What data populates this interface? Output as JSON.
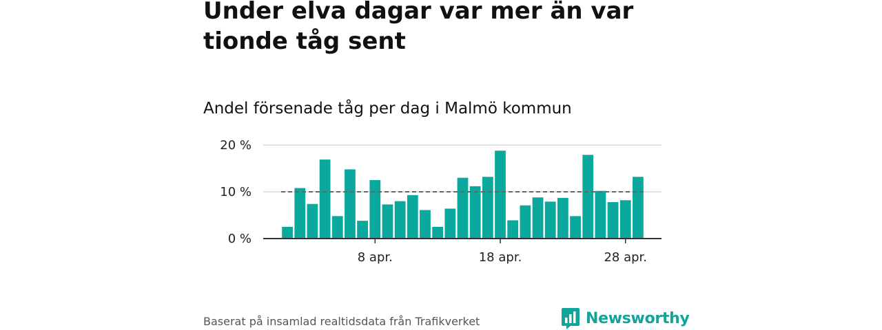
{
  "header": {
    "title": "Under elva dagar var mer än var tionde tåg sent",
    "subtitle": "Andel försenade tåg per dag i Malmö kommun"
  },
  "footer": {
    "source": "Baserat på insamlad realtidsdata från Trafikverket",
    "brand": "Newsworthy"
  },
  "colors": {
    "bar": "#0ba89e",
    "reference_line": "#666666",
    "grid": "#d9d9d9",
    "brand": "#12a39a"
  },
  "chart_data": {
    "type": "bar",
    "title": "Andel försenade tåg per dag i Malmö kommun",
    "xlabel": "",
    "ylabel": "",
    "y_unit": "%",
    "ylim": [
      0,
      20
    ],
    "y_ticks": [
      {
        "value": 0,
        "label": "0 %"
      },
      {
        "value": 10,
        "label": "10 %"
      },
      {
        "value": 20,
        "label": "20 %"
      }
    ],
    "x_ticks": [
      {
        "day": 8,
        "label": "8 apr."
      },
      {
        "day": 18,
        "label": "18 apr."
      },
      {
        "day": 28,
        "label": "28 apr."
      }
    ],
    "grid": true,
    "reference_line": {
      "value": 10,
      "style": "dashed"
    },
    "days": [
      1,
      2,
      3,
      4,
      5,
      6,
      7,
      8,
      9,
      10,
      11,
      12,
      13,
      14,
      15,
      16,
      17,
      18,
      19,
      20,
      21,
      22,
      23,
      24,
      25,
      26,
      27,
      28,
      29
    ],
    "values": [
      2.5,
      10.8,
      7.4,
      16.9,
      4.8,
      14.8,
      3.8,
      12.5,
      7.3,
      8.0,
      9.3,
      6.1,
      2.5,
      6.4,
      13.0,
      11.2,
      13.2,
      18.8,
      3.9,
      7.1,
      8.8,
      7.9,
      8.7,
      4.8,
      17.9,
      10.2,
      7.8,
      8.2,
      13.2
    ]
  }
}
